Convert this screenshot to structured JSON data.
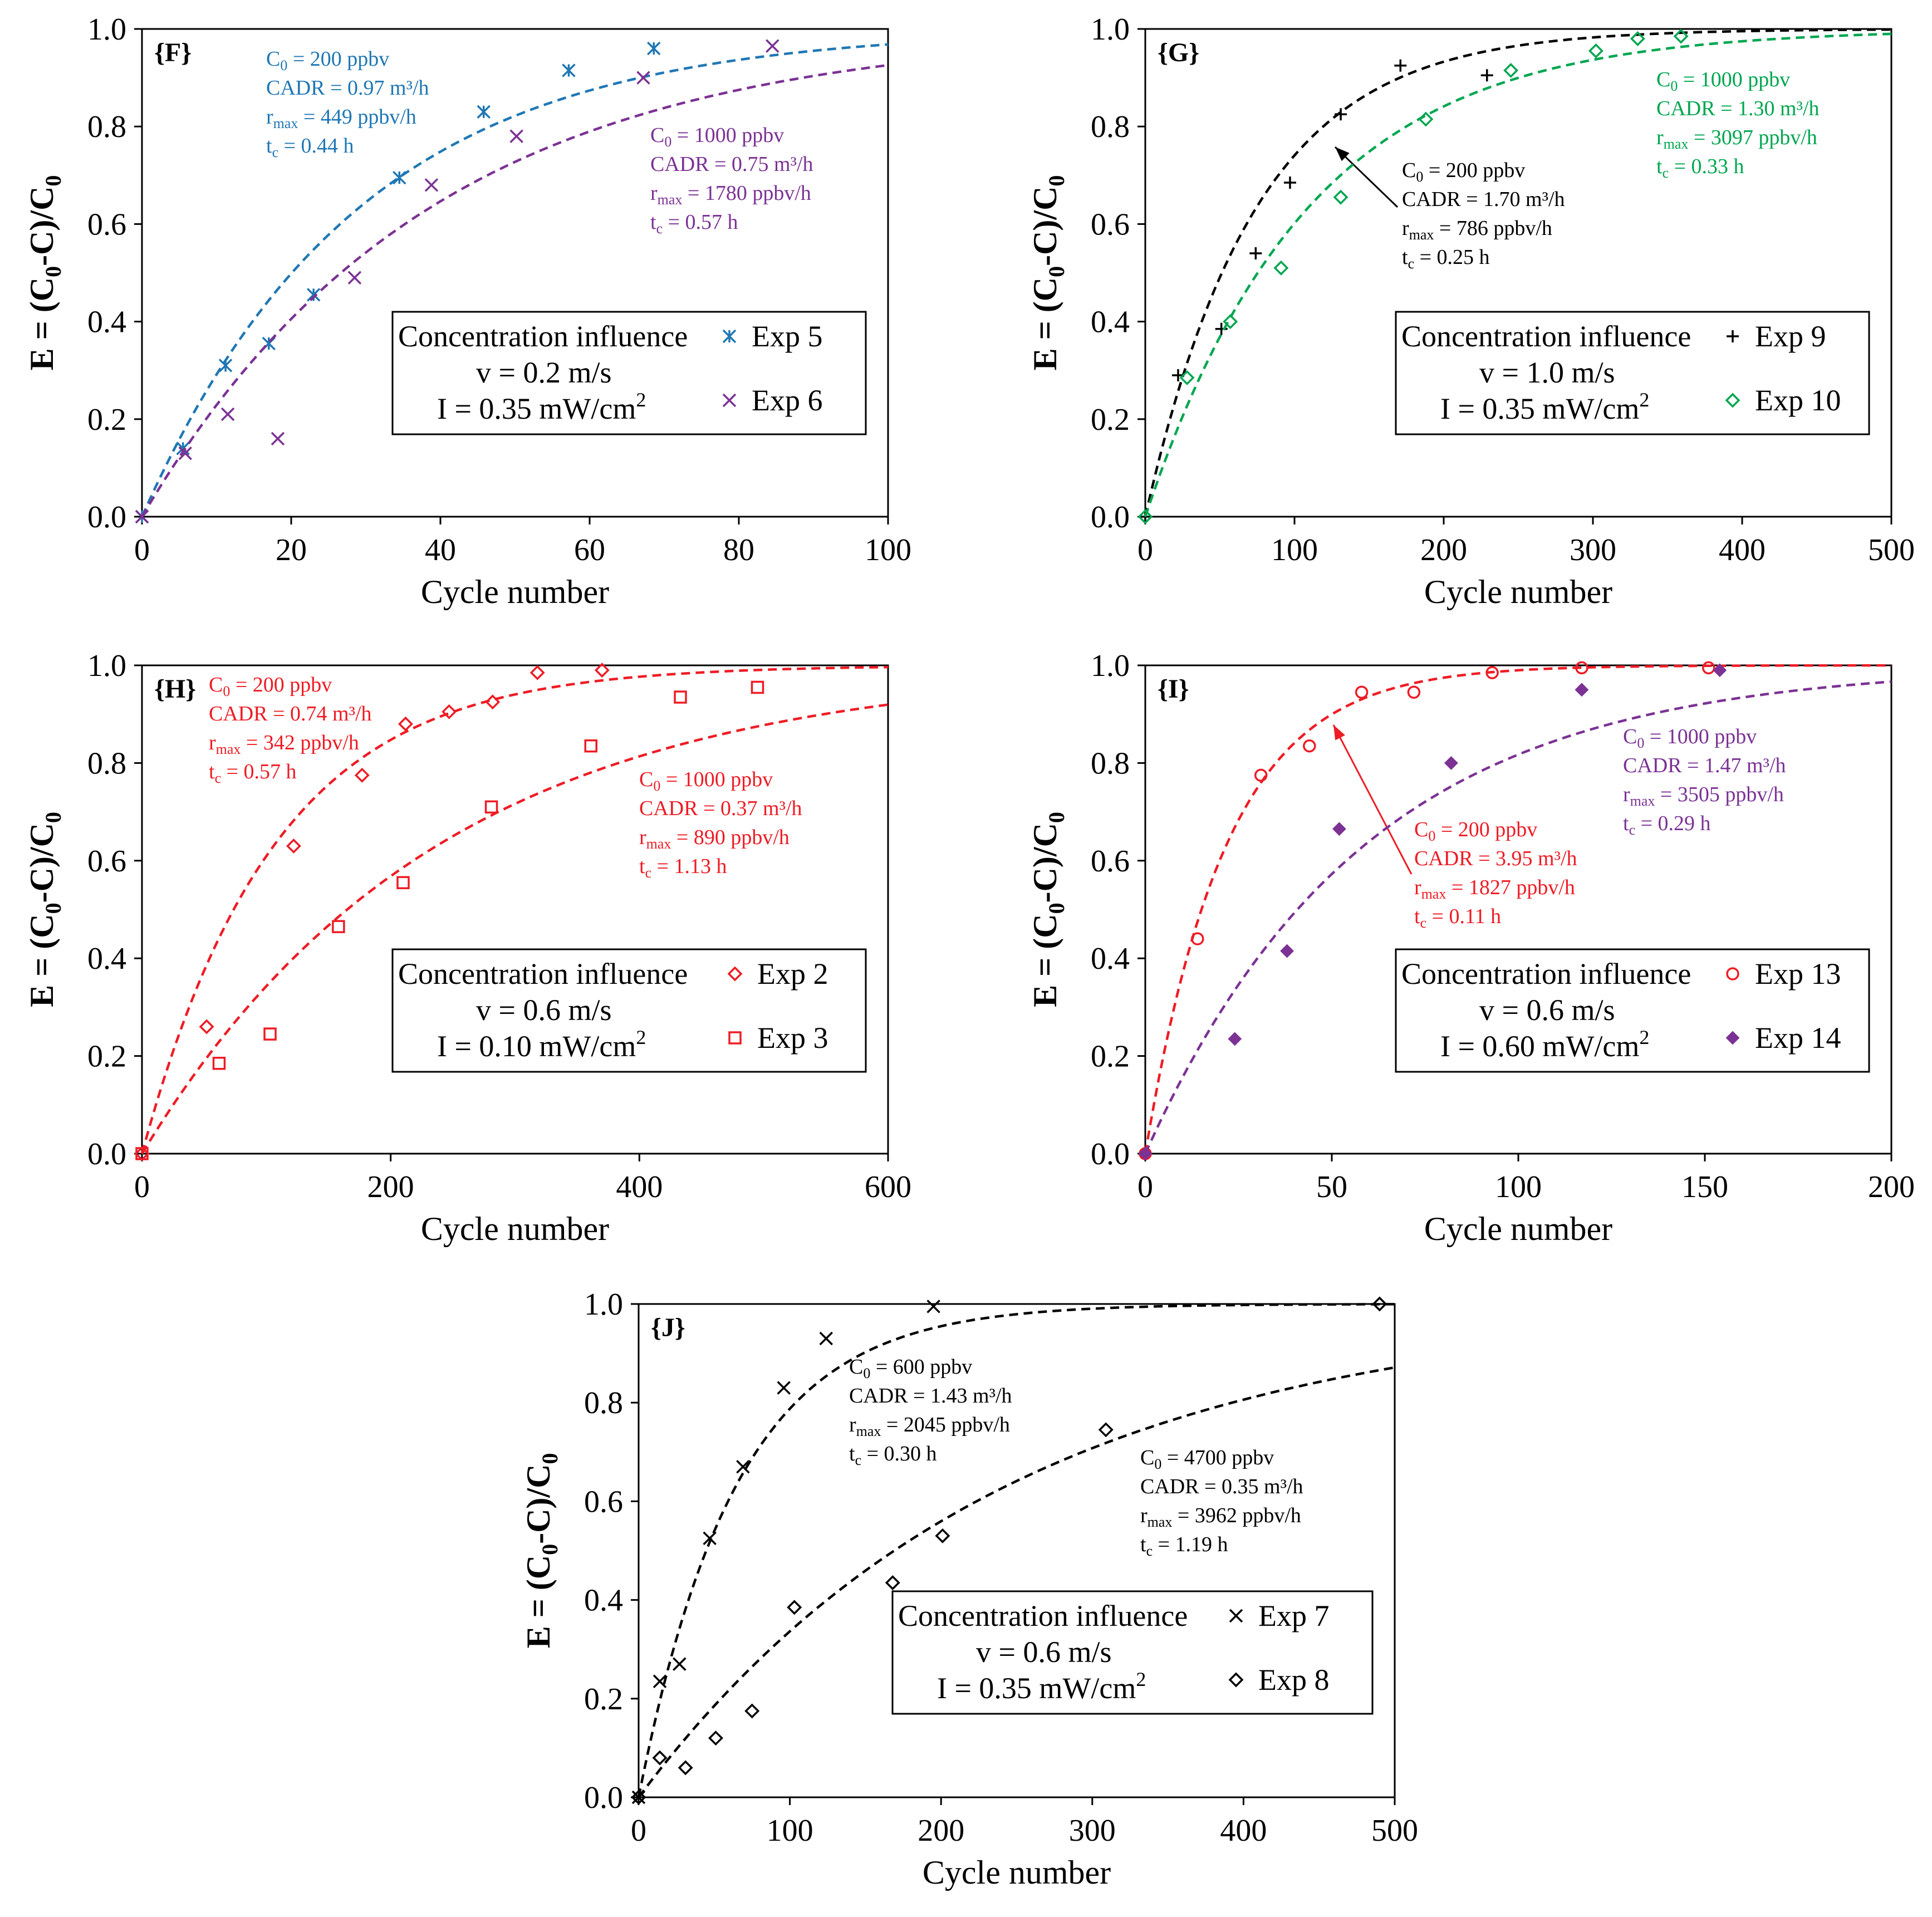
{
  "chart_data": [
    {
      "type": "scatter",
      "panel_label": "{F}",
      "xlabel": "Cycle number",
      "ylabel": {
        "a": "E = (C",
        "b": "-C)/C",
        "sub": "0"
      },
      "xlim": [
        0,
        100
      ],
      "ylim": [
        0,
        1
      ],
      "xticks": [
        0,
        20,
        40,
        60,
        80,
        100
      ],
      "yticks": [
        0.0,
        0.2,
        0.4,
        0.6,
        0.8,
        1.0
      ],
      "x_tick_labels": [
        "0",
        "20",
        "40",
        "60",
        "80",
        "100"
      ],
      "y_tick_labels": [
        "0.0",
        "0.2",
        "0.4",
        "0.6",
        "0.8",
        "1.0"
      ],
      "legend": {
        "position": "bottom-right",
        "lines": [
          "Concentration influence",
          "v = 0.2 m/s",
          "I = 0.35  mW/cm²"
        ],
        "entries": [
          "Exp 5",
          "Exp 6"
        ]
      },
      "series": [
        {
          "name": "Exp 5",
          "color": "#1f77b4",
          "marker": "star",
          "x": [
            0,
            5.5,
            11.2,
            17,
            23,
            34.5,
            45.8,
            57.2,
            68.6
          ],
          "y": [
            0,
            0.14,
            0.31,
            0.355,
            0.455,
            0.695,
            0.83,
            0.915,
            0.96
          ],
          "fit_k": 0.0345,
          "annotation": {
            "c0": "C",
            "c0_sub": "0",
            "c0_val": " = 200 ppbv",
            "cadr": "CADR = 0.97 m³/h",
            "r": "r",
            "r_sub": "max",
            "r_val": " = 449 ppbv/h",
            "t": "t",
            "t_sub": "c",
            "t_val": " = 0.44 h"
          }
        },
        {
          "name": "Exp 6",
          "color": "#7b3294",
          "marker": "x",
          "x": [
            0,
            5.8,
            11.5,
            18.2,
            28.5,
            38.8,
            50.2,
            67.2,
            84.5
          ],
          "y": [
            0,
            0.13,
            0.21,
            0.16,
            0.49,
            0.68,
            0.78,
            0.9,
            0.965
          ],
          "fit_k": 0.026,
          "annotation": {
            "c0": "C",
            "c0_sub": "0",
            "c0_val": " = 1000 ppbv",
            "cadr": "CADR = 0.75 m³/h",
            "r": "r",
            "r_sub": "max",
            "r_val": " = 1780 ppbv/h",
            "t": "t",
            "t_sub": "c",
            "t_val": " = 0.57 h"
          }
        }
      ]
    },
    {
      "type": "scatter",
      "panel_label": "{G}",
      "xlabel": "Cycle number",
      "ylabel": {
        "a": "E = (C",
        "b": "-C)/C",
        "sub": "0"
      },
      "xlim": [
        0,
        500
      ],
      "ylim": [
        0,
        1
      ],
      "xticks": [
        0,
        100,
        200,
        300,
        400,
        500
      ],
      "yticks": [
        0.0,
        0.2,
        0.4,
        0.6,
        0.8,
        1.0
      ],
      "x_tick_labels": [
        "0",
        "100",
        "200",
        "300",
        "400",
        "500"
      ],
      "y_tick_labels": [
        "0.0",
        "0.2",
        "0.4",
        "0.6",
        "0.8",
        "1.0"
      ],
      "legend": {
        "position": "bottom-right",
        "lines": [
          "Concentration influence",
          "v = 1.0 m/s",
          "I = 0.35  mW/cm²"
        ],
        "entries": [
          "Exp 9",
          "Exp 10"
        ]
      },
      "series": [
        {
          "name": "Exp 9",
          "color": "#000000",
          "marker": "plus",
          "x": [
            0,
            22,
            51,
            74,
            97,
            131,
            171,
            229
          ],
          "y": [
            0,
            0.29,
            0.385,
            0.54,
            0.685,
            0.825,
            0.925,
            0.905
          ],
          "fit_k": 0.0135,
          "annotation": {
            "c0": "C",
            "c0_sub": "0",
            "c0_val": " = 200 ppbv",
            "cadr": "CADR = 1.70 m³/h",
            "r": "r",
            "r_sub": "max",
            "r_val": " = 786 ppbv/h",
            "t": "t",
            "t_sub": "c",
            "t_val": " = 0.25 h"
          }
        },
        {
          "name": "Exp 10",
          "color": "#00a650",
          "marker": "diamond",
          "x": [
            0,
            28,
            57,
            91,
            131,
            188,
            245,
            302,
            330,
            359
          ],
          "y": [
            0,
            0.285,
            0.4,
            0.51,
            0.655,
            0.815,
            0.915,
            0.955,
            0.98,
            0.985
          ],
          "fit_k": 0.0092,
          "annotation": {
            "c0": "C",
            "c0_sub": "0",
            "c0_val": " = 1000 ppbv",
            "cadr": "CADR = 1.30 m³/h",
            "r": "r",
            "r_sub": "max",
            "r_val": " = 3097 ppbv/h",
            "t": "t",
            "t_sub": "c",
            "t_val": " = 0.33 h"
          }
        }
      ]
    },
    {
      "type": "scatter",
      "panel_label": "{H}",
      "xlabel": "Cycle number",
      "ylabel": {
        "a": "E = (C",
        "b": "-C)/C",
        "sub": "0"
      },
      "xlim": [
        0,
        600
      ],
      "ylim": [
        0,
        1
      ],
      "xticks": [
        0,
        200,
        400,
        600
      ],
      "yticks": [
        0.0,
        0.2,
        0.4,
        0.6,
        0.8,
        1.0
      ],
      "x_tick_labels": [
        "0",
        "200",
        "400",
        "600"
      ],
      "y_tick_labels": [
        "0.0",
        "0.2",
        "0.4",
        "0.6",
        "0.8",
        "1.0"
      ],
      "legend": {
        "position": "bottom-right",
        "lines": [
          "Concentration influence",
          "v = 0.6 m/s",
          "I = 0.10  mW/cm²"
        ],
        "entries": [
          "Exp 2",
          "Exp 3"
        ]
      },
      "series": [
        {
          "name": "Exp 2",
          "color": "#ee1c25",
          "marker": "diamond",
          "x": [
            0,
            52,
            122,
            177,
            212,
            247,
            282,
            318,
            370
          ],
          "y": [
            0,
            0.26,
            0.63,
            0.775,
            0.88,
            0.905,
            0.925,
            0.985,
            0.99
          ],
          "fit_k": 0.0094,
          "annotation": {
            "c0": "C",
            "c0_sub": "0",
            "c0_val": " = 200 ppbv",
            "cadr": "CADR = 0.74 m³/h",
            "r": "r",
            "r_sub": "max",
            "r_val": " = 342 ppbv/h",
            "t": "t",
            "t_sub": "c",
            "t_val": " = 0.57 h"
          }
        },
        {
          "name": "Exp 3",
          "color": "#ee1c25",
          "marker": "square",
          "x": [
            0,
            62,
            103,
            158,
            210,
            281,
            361,
            433,
            495
          ],
          "y": [
            0,
            0.185,
            0.245,
            0.465,
            0.555,
            0.71,
            0.835,
            0.935,
            0.955
          ],
          "fit_k": 0.0042,
          "annotation": {
            "c0": "C",
            "c0_sub": "0",
            "c0_val": " = 1000 ppbv",
            "cadr": "CADR = 0.37 m³/h",
            "r": "r",
            "r_sub": "max",
            "r_val": " = 890 ppbv/h",
            "t": "t",
            "t_sub": "c",
            "t_val": " = 1.13 h"
          }
        }
      ]
    },
    {
      "type": "scatter",
      "panel_label": "{I}",
      "xlabel": "Cycle number",
      "ylabel": {
        "a": "E = (C",
        "b": "-C)/C",
        "sub": "0"
      },
      "xlim": [
        0,
        200
      ],
      "ylim": [
        0,
        1
      ],
      "xticks": [
        0,
        50,
        100,
        150,
        200
      ],
      "yticks": [
        0.0,
        0.2,
        0.4,
        0.6,
        0.8,
        1.0
      ],
      "x_tick_labels": [
        "0",
        "50",
        "100",
        "150",
        "200"
      ],
      "y_tick_labels": [
        "0.0",
        "0.2",
        "0.4",
        "0.6",
        "0.8",
        "1.0"
      ],
      "legend": {
        "position": "bottom-right",
        "lines": [
          "Concentration influence",
          "v = 0.6 m/s",
          "I = 0.60  mW/cm²"
        ],
        "entries": [
          "Exp 13",
          "Exp 14"
        ]
      },
      "series": [
        {
          "name": "Exp 13",
          "color": "#ee1c25",
          "marker": "circle",
          "x": [
            0,
            14,
            31,
            44,
            58,
            72,
            93,
            117,
            151
          ],
          "y": [
            0,
            0.44,
            0.775,
            0.835,
            0.945,
            0.945,
            0.985,
            0.995,
            0.995
          ],
          "fit_k": 0.046,
          "annotation": {
            "c0": "C",
            "c0_sub": "0",
            "c0_val": " = 200 ppbv",
            "cadr": "CADR = 3.95 m³/h",
            "r": "r",
            "r_sub": "max",
            "r_val": " = 1827 ppbv/h",
            "t": "t",
            "t_sub": "c",
            "t_val": " = 0.11 h"
          }
        },
        {
          "name": "Exp 14",
          "color": "#7b3294",
          "marker": "filled-diamond",
          "x": [
            0,
            24,
            38,
            52,
            82,
            117,
            154
          ],
          "y": [
            0,
            0.235,
            0.415,
            0.665,
            0.8,
            0.95,
            0.99
          ],
          "fit_k": 0.017,
          "annotation": {
            "c0": "C",
            "c0_sub": "0",
            "c0_val": " = 1000 ppbv",
            "cadr": "CADR = 1.47 m³/h",
            "r": "r",
            "r_sub": "max",
            "r_val": " = 3505 ppbv/h",
            "t": "t",
            "t_sub": "c",
            "t_val": " = 0.29 h"
          }
        }
      ]
    },
    {
      "type": "scatter",
      "panel_label": "{J}",
      "xlabel": "Cycle number",
      "ylabel": {
        "a": "E = (C",
        "b": "-C)/C",
        "sub": "0"
      },
      "xlim": [
        0,
        500
      ],
      "ylim": [
        0,
        1
      ],
      "xticks": [
        0,
        100,
        200,
        300,
        400,
        500
      ],
      "yticks": [
        0.0,
        0.2,
        0.4,
        0.6,
        0.8,
        1.0
      ],
      "x_tick_labels": [
        "0",
        "100",
        "200",
        "300",
        "400",
        "500"
      ],
      "y_tick_labels": [
        "0.0",
        "0.2",
        "0.4",
        "0.6",
        "0.8",
        "1.0"
      ],
      "legend": {
        "position": "bottom-right",
        "lines": [
          "Concentration influence",
          "v = 0.6 m/s",
          "I = 0.35  mW/cm²"
        ],
        "entries": [
          "Exp 7",
          "Exp 8"
        ]
      },
      "series": [
        {
          "name": "Exp 7",
          "color": "#000000",
          "marker": "x",
          "x": [
            0,
            14,
            27,
            47,
            69,
            96,
            124,
            195
          ],
          "y": [
            0,
            0.235,
            0.27,
            0.525,
            0.67,
            0.83,
            0.93,
            0.995
          ],
          "fit_k": 0.0155,
          "annotation": {
            "c0": "C",
            "c0_sub": "0",
            "c0_val": " = 600 ppbv",
            "cadr": "CADR = 1.43 m³/h",
            "r": "r",
            "r_sub": "max",
            "r_val": " = 2045 ppbv/h",
            "t": "t",
            "t_sub": "c",
            "t_val": " = 0.30 h"
          }
        },
        {
          "name": "Exp 8",
          "color": "#000000",
          "marker": "diamond",
          "x": [
            0,
            14,
            31,
            51,
            75,
            103,
            168,
            201,
            309,
            490
          ],
          "y": [
            0,
            0.08,
            0.06,
            0.12,
            0.175,
            0.385,
            0.435,
            0.53,
            0.745,
            1.0
          ],
          "fit_k": 0.0041,
          "annotation": {
            "c0": "C",
            "c0_sub": "0",
            "c0_val": " = 4700 ppbv",
            "cadr": "CADR = 0.35 m³/h",
            "r": "r",
            "r_sub": "max",
            "r_val": " = 3962 ppbv/h",
            "t": "t",
            "t_sub": "c",
            "t_val": " = 1.19 h"
          }
        }
      ]
    }
  ]
}
